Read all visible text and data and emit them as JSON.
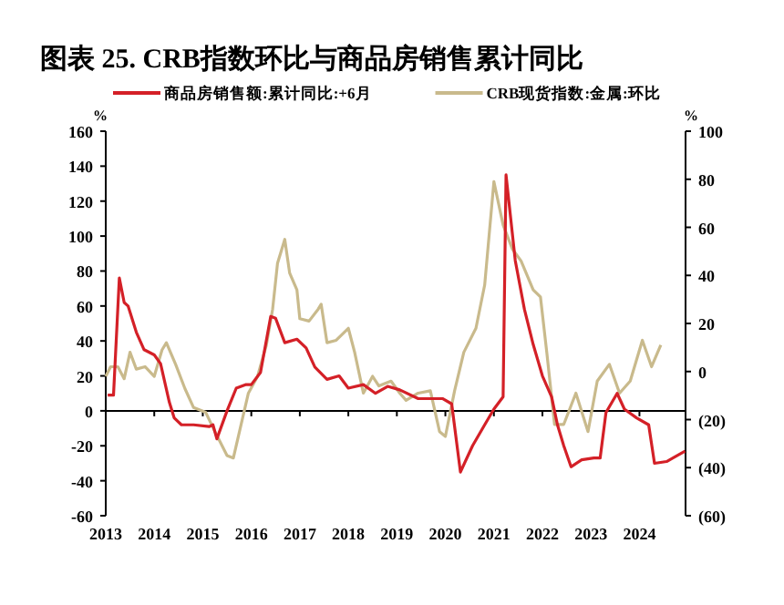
{
  "chart_data": {
    "type": "line",
    "title": "图表 25. CRB指数环比与商品房销售累计同比",
    "ylabel": "%",
    "y2label": "%",
    "legend": "top",
    "xlim": [
      2013,
      2024.95
    ],
    "xticks": [
      2013,
      2014,
      2015,
      2016,
      2017,
      2018,
      2019,
      2020,
      2021,
      2022,
      2023,
      2024
    ],
    "ylim": [
      -60,
      160
    ],
    "yticks": [
      -60,
      -40,
      -20,
      0,
      20,
      40,
      60,
      80,
      100,
      120,
      140,
      160
    ],
    "y2lim": [
      -60,
      100
    ],
    "y2ticks": [
      {
        "value": -60,
        "label": "(60)"
      },
      {
        "value": -40,
        "label": "(40)"
      },
      {
        "value": -20,
        "label": "(20)"
      },
      0,
      20,
      40,
      60,
      80,
      100
    ],
    "series": [
      {
        "name": "商品房销售额:累计同比:+6月",
        "color": "#d42027",
        "x": [
          2013.04,
          2013.16,
          2013.28,
          2013.38,
          2013.46,
          2013.63,
          2013.79,
          2014.0,
          2014.13,
          2014.31,
          2014.41,
          2014.56,
          2014.81,
          2015.13,
          2015.21,
          2015.29,
          2015.5,
          2015.69,
          2015.88,
          2016.0,
          2016.19,
          2016.4,
          2016.5,
          2016.69,
          2016.94,
          2017.13,
          2017.31,
          2017.56,
          2017.81,
          2018.0,
          2018.31,
          2018.56,
          2018.81,
          2019.06,
          2019.44,
          2019.94,
          2020.13,
          2020.31,
          2020.56,
          2020.81,
          2021.0,
          2021.19,
          2021.25,
          2021.44,
          2021.63,
          2021.81,
          2022.0,
          2022.19,
          2022.31,
          2022.44,
          2022.59,
          2022.81,
          2023.06,
          2023.19,
          2023.31,
          2023.54,
          2023.69,
          2023.94,
          2024.19,
          2024.31,
          2024.56,
          2024.69,
          2024.94
        ],
        "values": [
          9,
          9,
          76,
          62,
          60,
          45,
          35,
          32,
          27,
          5,
          -4,
          -8,
          -8,
          -9,
          -8,
          -16,
          0,
          13,
          15,
          15,
          22,
          54,
          53,
          39,
          41,
          36,
          25,
          18,
          20,
          13,
          15,
          10,
          14,
          12,
          7,
          7,
          4,
          -35,
          -20,
          -8,
          1,
          8,
          135,
          86,
          58,
          38,
          20,
          8,
          -8,
          -20,
          -32,
          -28,
          -27,
          -27,
          -1,
          10,
          1,
          -4,
          -8,
          -30,
          -29,
          -27,
          -23
        ]
      },
      {
        "name": "CRB现货指数:金属:环比",
        "color": "#c9ba8c",
        "axis": "y2",
        "x": [
          2013.0,
          2013.1,
          2013.25,
          2013.38,
          2013.5,
          2013.63,
          2013.81,
          2014.0,
          2014.16,
          2014.25,
          2014.44,
          2014.63,
          2014.81,
          2015.06,
          2015.25,
          2015.5,
          2015.63,
          2015.79,
          2015.94,
          2016.13,
          2016.31,
          2016.44,
          2016.54,
          2016.69,
          2016.79,
          2016.94,
          2017.0,
          2017.19,
          2017.38,
          2017.44,
          2017.56,
          2017.75,
          2018.0,
          2018.13,
          2018.31,
          2018.5,
          2018.63,
          2018.88,
          2019.06,
          2019.19,
          2019.44,
          2019.69,
          2019.88,
          2020.0,
          2020.19,
          2020.38,
          2020.63,
          2020.81,
          2021.0,
          2021.19,
          2021.38,
          2021.56,
          2021.81,
          2021.96,
          2022.09,
          2022.25,
          2022.44,
          2022.69,
          2022.94,
          2023.13,
          2023.38,
          2023.59,
          2023.81,
          2024.06,
          2024.25,
          2024.44
        ],
        "values": [
          -2,
          2,
          2,
          -3,
          8,
          1,
          2,
          -2,
          9,
          12,
          3,
          -7,
          -15,
          -17,
          -25,
          -35,
          -36,
          -22,
          -9,
          -2,
          11,
          26,
          45,
          55,
          41,
          34,
          22,
          21,
          26,
          28,
          12,
          13,
          18,
          8,
          -9,
          -2,
          -6,
          -4,
          -9,
          -12,
          -9,
          -8,
          -25,
          -27,
          -8,
          8,
          18,
          36,
          79,
          61,
          51,
          46,
          34,
          31,
          8,
          -22,
          -22,
          -9,
          -25,
          -4,
          3,
          -9,
          -4,
          13,
          2,
          11
        ]
      }
    ]
  }
}
